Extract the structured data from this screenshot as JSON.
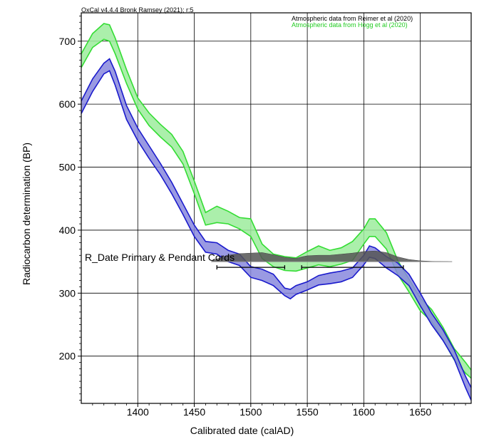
{
  "header": {
    "software": "OxCal v4.4.4 Bronk Ramsey (2021); r:5"
  },
  "legend": [
    {
      "text": "Atmospheric data from Reimer et al (2020)",
      "color": "#000000"
    },
    {
      "text": "Atmospheric data from Hogg et al (2020)",
      "color": "#22cc22"
    }
  ],
  "chart_data": {
    "type": "area",
    "xlabel": "Calibrated date (calAD)",
    "ylabel": "Radiocarbon determination (BP)",
    "xlim": [
      1350,
      1695
    ],
    "ylim": [
      125,
      745
    ],
    "xticks": [
      1400,
      1450,
      1500,
      1550,
      1600,
      1650
    ],
    "yticks": [
      200,
      300,
      400,
      500,
      600,
      700
    ],
    "grid": true,
    "series": [
      {
        "name": "Atmospheric data from Hogg et al (2020)",
        "color": "#33dd33",
        "fill": "#9cec9c",
        "x": [
          1350,
          1360,
          1370,
          1375,
          1380,
          1390,
          1400,
          1410,
          1420,
          1430,
          1440,
          1450,
          1460,
          1470,
          1480,
          1490,
          1500,
          1510,
          1520,
          1530,
          1540,
          1550,
          1560,
          1570,
          1580,
          1590,
          1600,
          1605,
          1610,
          1620,
          1630,
          1640,
          1650,
          1660,
          1670,
          1680,
          1690,
          1695
        ],
        "upper": [
          680,
          712,
          728,
          726,
          705,
          655,
          610,
          586,
          568,
          552,
          525,
          478,
          428,
          438,
          430,
          420,
          418,
          378,
          362,
          358,
          356,
          366,
          375,
          368,
          372,
          382,
          402,
          418,
          418,
          396,
          352,
          322,
          292,
          274,
          246,
          212,
          190,
          178
        ],
        "lower": [
          658,
          690,
          703,
          700,
          680,
          633,
          592,
          566,
          548,
          532,
          505,
          458,
          408,
          412,
          410,
          402,
          390,
          355,
          342,
          336,
          335,
          340,
          345,
          342,
          346,
          352,
          378,
          390,
          390,
          370,
          330,
          302,
          272,
          255,
          226,
          194,
          173,
          165
        ]
      },
      {
        "name": "Atmospheric data from Reimer et al (2020)",
        "color": "#1a1acc",
        "fill": "#8888dd",
        "x": [
          1350,
          1360,
          1370,
          1375,
          1380,
          1390,
          1400,
          1410,
          1420,
          1430,
          1440,
          1450,
          1460,
          1470,
          1480,
          1490,
          1500,
          1510,
          1520,
          1530,
          1535,
          1540,
          1550,
          1560,
          1570,
          1580,
          1590,
          1600,
          1605,
          1610,
          1620,
          1630,
          1640,
          1650,
          1660,
          1670,
          1680,
          1690,
          1695
        ],
        "upper": [
          605,
          640,
          665,
          672,
          652,
          598,
          562,
          534,
          506,
          476,
          442,
          408,
          382,
          380,
          368,
          362,
          342,
          338,
          330,
          308,
          306,
          312,
          318,
          328,
          332,
          335,
          340,
          360,
          375,
          372,
          358,
          348,
          330,
          300,
          268,
          242,
          210,
          168,
          150
        ],
        "lower": [
          585,
          620,
          648,
          653,
          630,
          576,
          542,
          514,
          488,
          458,
          425,
          390,
          365,
          362,
          350,
          344,
          325,
          320,
          312,
          296,
          291,
          298,
          305,
          313,
          315,
          318,
          325,
          345,
          357,
          355,
          340,
          328,
          312,
          280,
          250,
          225,
          195,
          150,
          130
        ]
      }
    ],
    "distribution": {
      "name": "R_Date Primary & Pendant Cords",
      "color": "#555555",
      "baseline": 350,
      "x": [
        1465,
        1470,
        1480,
        1490,
        1500,
        1510,
        1520,
        1530,
        1540,
        1545,
        1550,
        1560,
        1570,
        1580,
        1590,
        1600,
        1610,
        1620,
        1630,
        1640,
        1650,
        1660,
        1675
      ],
      "density": [
        0,
        0.25,
        0.6,
        0.75,
        0.8,
        0.85,
        0.65,
        0.4,
        0.3,
        0.45,
        0.55,
        0.6,
        0.6,
        0.7,
        0.8,
        0.95,
        1.0,
        0.85,
        0.45,
        0.2,
        0.08,
        0.03,
        0
      ],
      "ranges": [
        [
          1470,
          1530
        ],
        [
          1545,
          1635
        ]
      ]
    }
  }
}
